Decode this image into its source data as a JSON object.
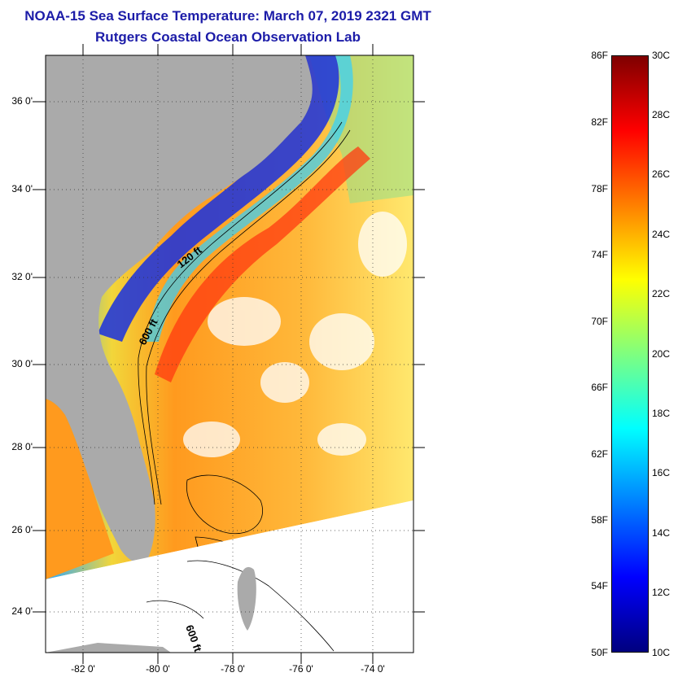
{
  "title": {
    "line1": "NOAA-15 Sea Surface Temperature:  March 07, 2019 2321 GMT",
    "line2": "Rutgers Coastal Ocean Observation Lab"
  },
  "map": {
    "lat_labels": [
      "36 0'",
      "34 0'",
      "32 0'",
      "30 0'",
      "28 0'",
      "26 0'",
      "24 0'"
    ],
    "lon_labels": [
      "-82 0'",
      "-80 0'",
      "-78 0'",
      "-76 0'",
      "-74 0'"
    ],
    "contour_labels": [
      "120 ft",
      "600 ft",
      "600 ft"
    ]
  },
  "colorbar": {
    "fahrenheit_labels": [
      "86F",
      "82F",
      "78F",
      "74F",
      "70F",
      "66F",
      "62F",
      "58F",
      "54F",
      "50F"
    ],
    "celsius_labels": [
      "30C",
      "28C",
      "26C",
      "24C",
      "22C",
      "20C",
      "18C",
      "16C",
      "14C",
      "12C",
      "10C"
    ],
    "colors": [
      "#7f0000",
      "#ff0000",
      "#ff7f00",
      "#ffff00",
      "#7fff7f",
      "#00ffff",
      "#007fff",
      "#0000ff",
      "#00007f"
    ]
  },
  "colors": {
    "land": "#aaaaaa",
    "title": "#1c1ca8"
  }
}
